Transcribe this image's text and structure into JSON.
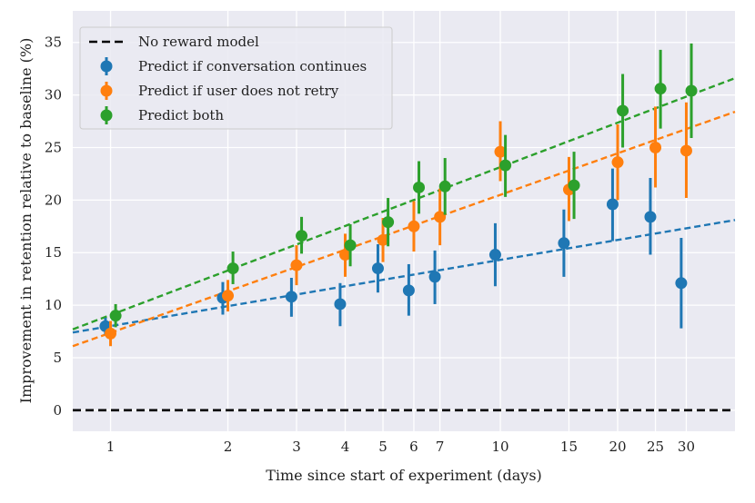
{
  "chart_data": {
    "type": "scatter",
    "title": "",
    "xlabel": "Time since start of experiment (days)",
    "ylabel": "Improvement in retention relative to baseline (%)",
    "x_scale": "log",
    "xlim": [
      0.8,
      40
    ],
    "ylim": [
      -2,
      38
    ],
    "x_ticks": [
      1,
      2,
      3,
      4,
      5,
      6,
      7,
      10,
      15,
      20,
      25,
      30
    ],
    "x_tick_labels": [
      "1",
      "2",
      "3",
      "4",
      "5",
      "6",
      "7",
      "10",
      "15",
      "20",
      "25",
      "30"
    ],
    "y_ticks": [
      0,
      5,
      10,
      15,
      20,
      25,
      30,
      35
    ],
    "y_tick_labels": [
      "0",
      "5",
      "10",
      "15",
      "20",
      "25",
      "30",
      "35"
    ],
    "grid": true,
    "legend_position": "top-left",
    "baseline": {
      "name": "No reward model",
      "y": 0,
      "color": "#000000",
      "style": "dashed"
    },
    "series": [
      {
        "name": "Predict if conversation continues",
        "color": "#1f77b4",
        "x": [
          1,
          2,
          3,
          4,
          5,
          6,
          7,
          10,
          15,
          20,
          25,
          30
        ],
        "y": [
          8.0,
          10.7,
          10.8,
          10.1,
          13.5,
          11.4,
          12.7,
          14.8,
          15.9,
          19.6,
          18.4,
          12.1
        ],
        "err_low": [
          7.2,
          9.1,
          8.9,
          8.0,
          11.2,
          9.0,
          10.1,
          11.8,
          12.7,
          16.1,
          14.8,
          7.8
        ],
        "err_high": [
          8.8,
          12.2,
          12.6,
          12.1,
          15.8,
          13.9,
          15.2,
          17.8,
          19.1,
          23.0,
          22.1,
          16.4
        ],
        "trend": [
          7.4,
          18.1
        ]
      },
      {
        "name": "Predict if user does not retry",
        "color": "#ff7f0e",
        "x": [
          1,
          2,
          3,
          4,
          5,
          6,
          7,
          10,
          15,
          20,
          25,
          30
        ],
        "y": [
          7.3,
          10.9,
          13.8,
          14.8,
          16.2,
          17.5,
          18.4,
          24.6,
          21.0,
          23.6,
          25.0,
          24.7
        ],
        "err_low": [
          6.1,
          9.4,
          11.9,
          12.7,
          14.1,
          15.1,
          15.7,
          21.8,
          18.0,
          20.0,
          21.2,
          20.2
        ],
        "err_high": [
          8.5,
          12.4,
          15.7,
          16.8,
          18.3,
          19.9,
          21.1,
          27.5,
          24.1,
          27.2,
          28.9,
          29.3
        ],
        "trend": [
          6.1,
          28.4
        ]
      },
      {
        "name": "Predict both",
        "color": "#2ca02c",
        "x": [
          1,
          2,
          3,
          4,
          5,
          6,
          7,
          10,
          15,
          20,
          25,
          30
        ],
        "y": [
          9.0,
          13.5,
          16.6,
          15.7,
          17.9,
          21.2,
          21.3,
          23.3,
          21.4,
          28.5,
          30.6,
          30.4
        ],
        "err_low": [
          7.9,
          12.0,
          14.9,
          13.7,
          15.6,
          18.7,
          18.6,
          20.3,
          18.2,
          25.0,
          26.8,
          25.9
        ],
        "err_high": [
          10.1,
          15.1,
          18.4,
          17.7,
          20.2,
          23.7,
          24.0,
          26.2,
          24.6,
          32.0,
          34.3,
          34.9
        ],
        "trend": [
          7.7,
          31.6
        ]
      }
    ]
  }
}
